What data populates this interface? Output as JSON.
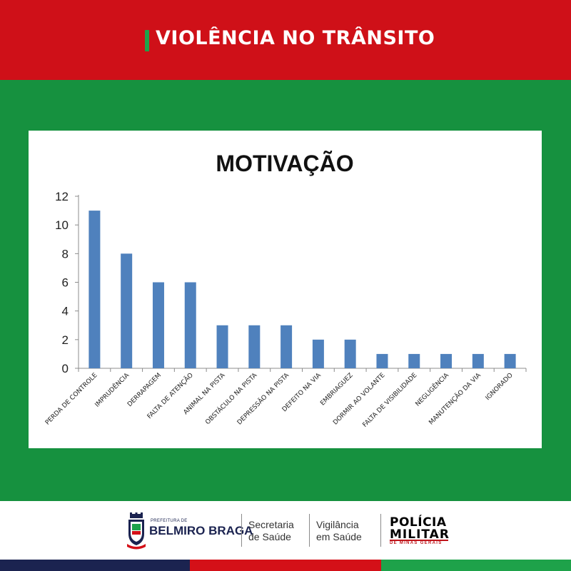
{
  "header": {
    "title": "VIOLÊNCIA NO TRÂNSITO"
  },
  "colors": {
    "header_red": "#cf1018",
    "background_green": "#16913f",
    "bar_blue": "#4f81bd",
    "navy": "#1b2350"
  },
  "chart_data": {
    "type": "bar",
    "title": "MOTIVAÇÃO",
    "xlabel": "",
    "ylabel": "",
    "categories": [
      "PERDA DE CONTROLE",
      "IMPRUDÊNCIA",
      "DERRAPAGEM",
      "FALTA DE ATENÇÃO",
      "ANIMAL NA PISTA",
      "OBSTÁCULO NA PISTA",
      "DEPRESSÃO NA PISTA",
      "DEFEITO NA VIA",
      "EMBRIAGUEZ",
      "DORMIR AO VOLANTE",
      "FALTA DE VISIBILIDADE",
      "NEGLIGÊNCIA",
      "MANUTENÇÃO DA VIA",
      "IGNORADO"
    ],
    "values": [
      11,
      8,
      6,
      6,
      3,
      3,
      3,
      2,
      2,
      1,
      1,
      1,
      1,
      1
    ],
    "ylim": [
      0,
      12
    ],
    "yticks": [
      0,
      2,
      4,
      6,
      8,
      10,
      12
    ],
    "grid": false,
    "legend": "none"
  },
  "footer": {
    "prefeitura_small": "PREFEITURA DE",
    "prefeitura_name": "BELMIRO BRAGA",
    "secretaria_line1": "Secretaria",
    "secretaria_line2": "de Saúde",
    "vigilancia_line1": "Vigilância",
    "vigilancia_line2": "em Saúde",
    "policia_line1": "POLÍCIA",
    "policia_line2": "MILITAR",
    "policia_line3": "DE MINAS GERAIS"
  }
}
